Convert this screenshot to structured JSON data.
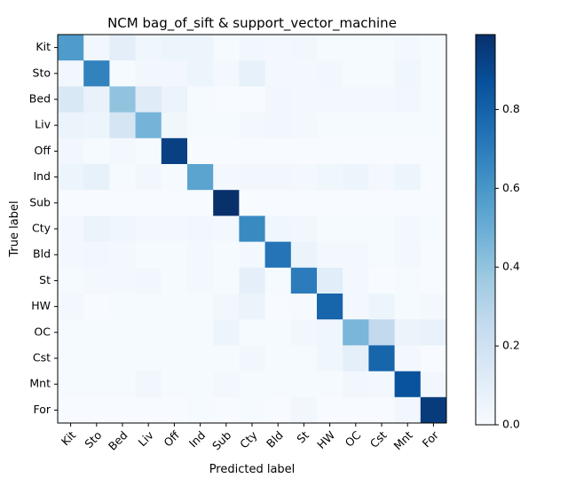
{
  "chart_data": {
    "type": "heatmap",
    "title": "NCM  bag_of_sift & support_vector_machine",
    "xlabel": "Predicted label",
    "ylabel": "True label",
    "x_categories": [
      "Kit",
      "Sto",
      "Bed",
      "Liv",
      "Off",
      "Ind",
      "Sub",
      "Cty",
      "Bld",
      "St",
      "HW",
      "OC",
      "Cst",
      "Mnt",
      "For"
    ],
    "y_categories": [
      "Kit",
      "Sto",
      "Bed",
      "Liv",
      "Off",
      "Ind",
      "Sub",
      "Cty",
      "Bld",
      "St",
      "HW",
      "OC",
      "Cst",
      "Mnt",
      "For"
    ],
    "values": [
      [
        0.58,
        0.03,
        0.1,
        0.04,
        0.05,
        0.05,
        0.01,
        0.03,
        0.02,
        0.03,
        0.01,
        0.01,
        0.01,
        0.02,
        0.01
      ],
      [
        0.03,
        0.68,
        0.01,
        0.03,
        0.03,
        0.05,
        0.02,
        0.08,
        0.02,
        0.02,
        0.03,
        0.01,
        0.01,
        0.04,
        0.01
      ],
      [
        0.15,
        0.07,
        0.4,
        0.12,
        0.06,
        0.01,
        0.0,
        0.0,
        0.03,
        0.02,
        0.02,
        0.02,
        0.02,
        0.03,
        0.01
      ],
      [
        0.06,
        0.05,
        0.17,
        0.47,
        0.04,
        0.01,
        0.01,
        0.02,
        0.03,
        0.02,
        0.01,
        0.01,
        0.01,
        0.01,
        0.01
      ],
      [
        0.03,
        0.01,
        0.02,
        0.01,
        0.93,
        0.0,
        0.0,
        0.0,
        0.0,
        0.0,
        0.0,
        0.0,
        0.0,
        0.0,
        0.0
      ],
      [
        0.05,
        0.08,
        0.01,
        0.03,
        0.01,
        0.54,
        0.02,
        0.03,
        0.03,
        0.02,
        0.04,
        0.05,
        0.02,
        0.05,
        0.0
      ],
      [
        0.0,
        0.0,
        0.0,
        0.0,
        0.0,
        0.0,
        0.99,
        0.0,
        0.0,
        0.0,
        0.0,
        0.0,
        0.0,
        0.0,
        0.0
      ],
      [
        0.02,
        0.06,
        0.04,
        0.02,
        0.02,
        0.03,
        0.02,
        0.65,
        0.04,
        0.03,
        0.01,
        0.01,
        0.01,
        0.02,
        0.01
      ],
      [
        0.02,
        0.03,
        0.02,
        0.01,
        0.01,
        0.02,
        0.01,
        0.02,
        0.73,
        0.06,
        0.02,
        0.02,
        0.01,
        0.02,
        0.0
      ],
      [
        0.01,
        0.02,
        0.02,
        0.03,
        0.01,
        0.02,
        0.01,
        0.09,
        0.01,
        0.7,
        0.11,
        0.02,
        0.0,
        0.01,
        0.0
      ],
      [
        0.02,
        0.0,
        0.01,
        0.01,
        0.01,
        0.01,
        0.03,
        0.06,
        0.0,
        0.01,
        0.79,
        0.02,
        0.05,
        0.01,
        0.02
      ],
      [
        0.01,
        0.01,
        0.01,
        0.01,
        0.01,
        0.01,
        0.05,
        0.01,
        0.01,
        0.03,
        0.04,
        0.46,
        0.26,
        0.06,
        0.07
      ],
      [
        0.01,
        0.01,
        0.01,
        0.01,
        0.01,
        0.01,
        0.01,
        0.03,
        0.01,
        0.01,
        0.04,
        0.09,
        0.79,
        0.02,
        0.0
      ],
      [
        0.01,
        0.01,
        0.01,
        0.03,
        0.01,
        0.01,
        0.02,
        0.01,
        0.01,
        0.01,
        0.01,
        0.03,
        0.02,
        0.86,
        0.03
      ],
      [
        0.0,
        0.0,
        0.0,
        0.0,
        0.0,
        0.01,
        0.0,
        0.01,
        0.0,
        0.03,
        0.0,
        0.0,
        0.0,
        0.03,
        0.95
      ]
    ],
    "colormap": "Blues",
    "vmin": 0.0,
    "vmax": 0.99,
    "colorbar": {
      "ticks": [
        0.0,
        0.2,
        0.4,
        0.6,
        0.8
      ],
      "tick_labels": [
        "0.0",
        "0.2",
        "0.4",
        "0.6",
        "0.8"
      ]
    },
    "tick_rotation_x": 45,
    "grid": false
  }
}
